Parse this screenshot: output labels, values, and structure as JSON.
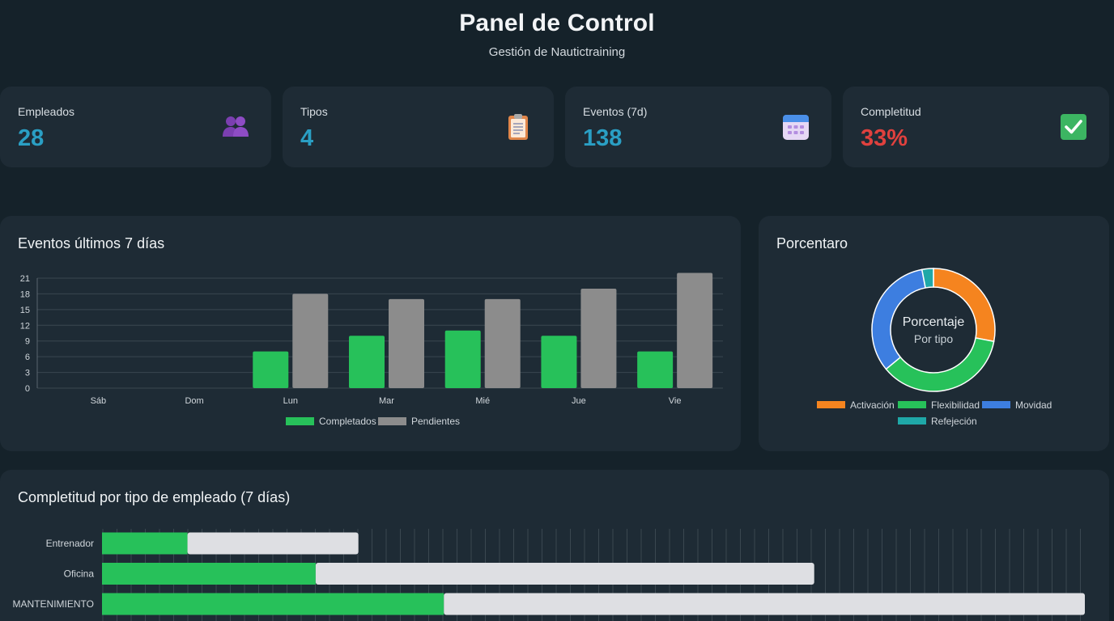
{
  "header": {
    "title": "Panel de Control",
    "subtitle": "Gestión de Nautictraining"
  },
  "stats": [
    {
      "label": "Empleados",
      "value": "28",
      "icon": "users-icon",
      "color": "#2a9fc4"
    },
    {
      "label": "Tipos",
      "value": "4",
      "icon": "clipboard-icon",
      "color": "#2a9fc4"
    },
    {
      "label": "Eventos (7d)",
      "value": "138",
      "icon": "calendar-icon",
      "color": "#2a9fc4"
    },
    {
      "label": "Completitud",
      "value": "33%",
      "icon": "check-icon",
      "color": "#e0413e"
    }
  ],
  "events_panel": {
    "title": "Eventos últimos 7 días"
  },
  "donut_panel": {
    "title": "Porcentaro",
    "center_title": "Porcentaje",
    "center_subtitle": "Por tipo"
  },
  "completion_panel": {
    "title": "Completitud por tipo de empleado (7 días)"
  },
  "chart_data": [
    {
      "type": "bar",
      "categories": [
        "Sáb",
        "Dom",
        "Lun",
        "Mar",
        "Mié",
        "Jue",
        "Vie"
      ],
      "series": [
        {
          "name": "Completados",
          "color": "#27c15a",
          "values": [
            0,
            0,
            7,
            10,
            11,
            10,
            7
          ]
        },
        {
          "name": "Pendientes",
          "color": "#8c8c8c",
          "values": [
            0,
            0,
            18,
            17,
            17,
            19,
            22
          ]
        }
      ],
      "yticks": [
        0,
        3,
        6,
        9,
        12,
        15,
        18,
        21
      ],
      "ylim": [
        0,
        21
      ],
      "legend": "bottom",
      "grid": true
    },
    {
      "type": "pie",
      "labels": [
        "Activación",
        "Flexibilidad",
        "Movidad",
        "Refejeción"
      ],
      "colors": [
        "#f5841f",
        "#27c15a",
        "#3d7ee0",
        "#1fa8a8"
      ],
      "values": [
        28,
        36,
        33,
        3
      ],
      "legend": "bottom"
    },
    {
      "type": "bar",
      "orientation": "horizontal",
      "stacked": true,
      "categories": [
        "Entrenador",
        "Oficina",
        "MANTENIMIENTO"
      ],
      "series": [
        {
          "name": "Completados",
          "color": "#27c15a",
          "values": [
            6,
            15,
            24
          ]
        },
        {
          "name": "Pendientes",
          "color": "#dedfe3",
          "values": [
            12,
            35,
            45
          ]
        }
      ],
      "grid": true
    }
  ]
}
